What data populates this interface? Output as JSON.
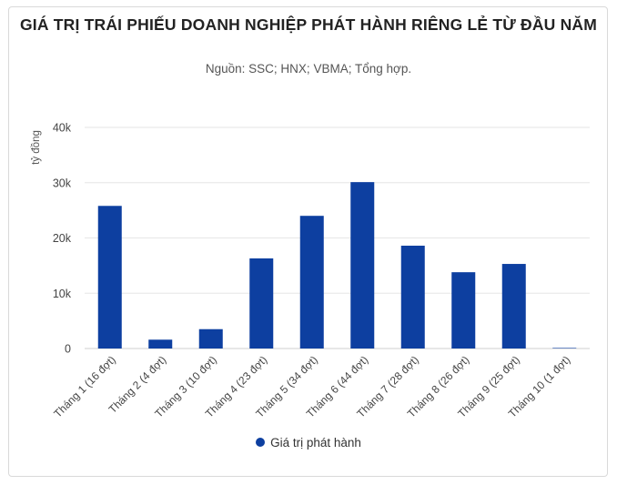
{
  "chart_data": {
    "type": "bar",
    "title": "GIÁ TRỊ TRÁI PHIẾU DOANH NGHIỆP PHÁT HÀNH RIÊNG LẺ TỪ ĐẦU NĂM",
    "subtitle": "Nguồn: SSC; HNX; VBMA; Tổng hợp.",
    "ylabel": "tỷ đồng",
    "xlabel": "",
    "ylim": [
      0,
      40000
    ],
    "yticks": [
      0,
      10000,
      20000,
      30000,
      40000
    ],
    "ytick_labels": [
      "0",
      "10k",
      "20k",
      "30k",
      "40k"
    ],
    "grid": true,
    "legend_position": "bottom",
    "categories": [
      "Tháng 1 (16 đợt)",
      "Tháng 2 (4 đợt)",
      "Tháng 3 (10 đợt)",
      "Tháng 4 (23 đợt)",
      "Tháng 5 (34 đợt)",
      "Tháng 6 (44 đợt)",
      "Tháng 7 (28 đợt)",
      "Tháng 8 (26 đợt)",
      "Tháng 9 (25 đợt)",
      "Tháng 10 (1 đợt)"
    ],
    "series": [
      {
        "name": "Giá trị phát hành",
        "color": "#0d3fa0",
        "values": [
          25800,
          1600,
          3500,
          16300,
          24000,
          30100,
          18600,
          13800,
          15300,
          100
        ]
      }
    ]
  }
}
